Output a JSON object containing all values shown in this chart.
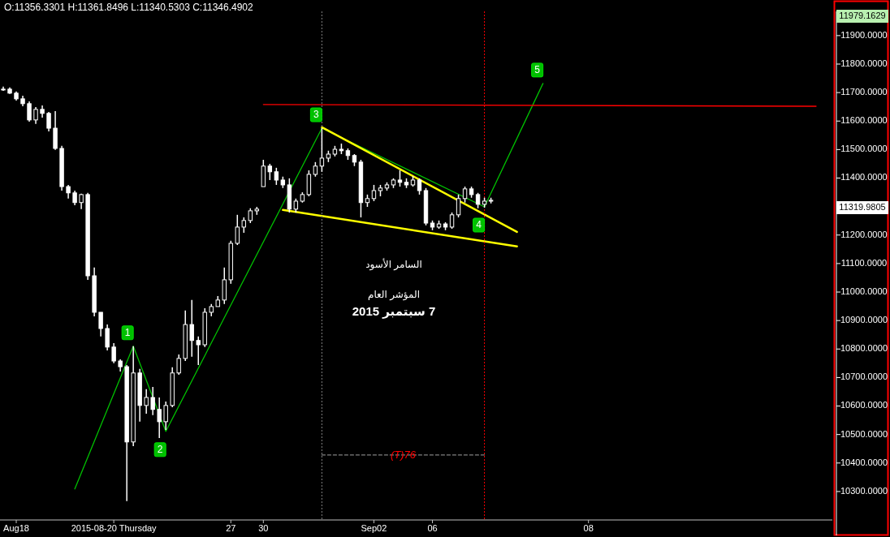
{
  "chart_data": {
    "type": "candlestick",
    "color": "#ffffff",
    "categories": [
      null,
      null,
      "Aug18",
      null,
      null,
      null,
      null,
      null,
      null,
      null,
      null,
      null,
      null,
      null,
      null,
      null,
      null,
      "2015-08-20 Thursday",
      null,
      null,
      null,
      null,
      null,
      null,
      null,
      null,
      null,
      null,
      null,
      null,
      null,
      null,
      null,
      null,
      null,
      "27",
      null,
      null,
      null,
      null,
      "30",
      null,
      null,
      null,
      null,
      null,
      null,
      null,
      null,
      null,
      null,
      null,
      null,
      null,
      null,
      null,
      null,
      "Sep02",
      null,
      null,
      null,
      null,
      null,
      null,
      null,
      null,
      "06",
      null,
      null,
      null,
      null,
      null,
      null,
      null,
      null,
      null,
      null,
      null,
      null,
      null,
      null,
      null,
      null,
      null,
      null,
      null,
      null,
      null,
      null,
      null,
      "08",
      null,
      null,
      null,
      null,
      null,
      null,
      null,
      null,
      null,
      null,
      null,
      null,
      null,
      null,
      null,
      null,
      null,
      null,
      null,
      null,
      null,
      null,
      null,
      null,
      null,
      null,
      null,
      null,
      null,
      null,
      null,
      null,
      null,
      null,
      null,
      null,
      null
    ],
    "ohlc": [
      [
        11712,
        11721,
        11706,
        11712
      ],
      [
        11712,
        11718,
        11695,
        11698
      ],
      [
        11698,
        11704,
        11672,
        11678
      ],
      [
        11678,
        11689,
        11652,
        11661
      ],
      [
        11661,
        11669,
        11598,
        11604
      ],
      [
        11604,
        11649,
        11590,
        11641
      ],
      [
        11641,
        11655,
        11612,
        11627
      ],
      [
        11627,
        11632,
        11564,
        11575
      ],
      [
        11575,
        11635,
        11499,
        11504
      ],
      [
        11504,
        11513,
        11356,
        11370
      ],
      [
        11370,
        11376,
        11328,
        11348
      ],
      [
        11348,
        11356,
        11305,
        11314
      ],
      [
        11314,
        11345,
        11291,
        11342
      ],
      [
        11342,
        11348,
        11043,
        11057
      ],
      [
        11057,
        11086,
        10915,
        10929
      ],
      [
        10929,
        10929,
        10844,
        10872
      ],
      [
        10872,
        10886,
        10795,
        10807
      ],
      [
        10807,
        10821,
        10750,
        10758
      ],
      [
        10758,
        10764,
        10721,
        10738
      ],
      [
        10738,
        10744,
        10266,
        10474
      ],
      [
        10474,
        10810,
        10459,
        10716
      ],
      [
        10716,
        10730,
        10545,
        10602
      ],
      [
        10602,
        10659,
        10573,
        10630
      ],
      [
        10630,
        10667,
        10568,
        10588
      ],
      [
        10588,
        10630,
        10488,
        10545
      ],
      [
        10545,
        10616,
        10516,
        10602
      ],
      [
        10602,
        10736,
        10596,
        10716
      ],
      [
        10716,
        10781,
        10710,
        10767
      ],
      [
        10767,
        10935,
        10758,
        10886
      ],
      [
        10886,
        10972,
        10773,
        10830
      ],
      [
        10830,
        10844,
        10744,
        10815
      ],
      [
        10815,
        10943,
        10807,
        10929
      ],
      [
        10929,
        10958,
        10915,
        10949
      ],
      [
        10949,
        10986,
        10949,
        10972
      ],
      [
        10972,
        11086,
        10958,
        11043
      ],
      [
        11043,
        11180,
        11029,
        11171
      ],
      [
        11171,
        11271,
        11165,
        11228
      ],
      [
        11228,
        11262,
        11208,
        11251
      ],
      [
        11251,
        11294,
        11242,
        11285
      ],
      [
        11285,
        11299,
        11271,
        11291
      ],
      [
        11370,
        11464,
        11370,
        11442
      ],
      [
        11442,
        11450,
        11393,
        11422
      ],
      [
        11422,
        11436,
        11376,
        11393
      ],
      [
        11393,
        11405,
        11365,
        11376
      ],
      [
        11376,
        11399,
        11279,
        11291
      ],
      [
        11291,
        11328,
        11279,
        11319
      ],
      [
        11319,
        11350,
        11314,
        11342
      ],
      [
        11342,
        11427,
        11336,
        11413
      ],
      [
        11413,
        11456,
        11405,
        11442
      ],
      [
        11442,
        11575,
        11422,
        11470
      ],
      [
        11470,
        11496,
        11456,
        11484
      ],
      [
        11484,
        11513,
        11476,
        11501
      ],
      [
        11501,
        11521,
        11484,
        11496
      ],
      [
        11496,
        11504,
        11464,
        11479
      ],
      [
        11479,
        11484,
        11442,
        11456
      ],
      [
        11456,
        11464,
        11262,
        11314
      ],
      [
        11314,
        11342,
        11299,
        11328
      ],
      [
        11328,
        11376,
        11319,
        11356
      ],
      [
        11356,
        11376,
        11336,
        11365
      ],
      [
        11365,
        11385,
        11356,
        11376
      ],
      [
        11376,
        11399,
        11365,
        11393
      ],
      [
        11393,
        11427,
        11370,
        11385
      ],
      [
        11385,
        11399,
        11365,
        11376
      ],
      [
        11376,
        11407,
        11370,
        11393
      ],
      [
        11393,
        11399,
        11342,
        11356
      ],
      [
        11356,
        11365,
        11234,
        11242
      ],
      [
        11242,
        11251,
        11217,
        11228
      ],
      [
        11228,
        11251,
        11222,
        11239
      ],
      [
        11239,
        11245,
        11217,
        11228
      ],
      [
        11228,
        11279,
        11222,
        11271
      ],
      [
        11271,
        11342,
        11262,
        11328
      ],
      [
        11328,
        11370,
        11314,
        11362
      ],
      [
        11362,
        11370,
        11331,
        11342
      ],
      [
        11342,
        11348,
        11294,
        11308
      ],
      [
        11308,
        11331,
        11296,
        11319
      ],
      [
        11319,
        11331,
        11311,
        11322
      ],
      null,
      null,
      null,
      null,
      null,
      null,
      null,
      null,
      null,
      null,
      null,
      null,
      null,
      null,
      null,
      null,
      null,
      null,
      null,
      null,
      null,
      null,
      null,
      null,
      null,
      null,
      null,
      null,
      null,
      null,
      null,
      null,
      null,
      null,
      null,
      null,
      null,
      null,
      null,
      null,
      null,
      null,
      null,
      null,
      null,
      null,
      null,
      null,
      null,
      null,
      null,
      null
    ],
    "ylim": [
      10203,
      11985
    ],
    "yticks": [
      {
        "value": 10300,
        "label": "10300.0000"
      },
      {
        "value": 10400,
        "label": "10400.0000"
      },
      {
        "value": 10500,
        "label": "10500.0000"
      },
      {
        "value": 10600,
        "label": "10600.0000"
      },
      {
        "value": 10700,
        "label": "10700.0000"
      },
      {
        "value": 10800,
        "label": "10800.0000"
      },
      {
        "value": 10900,
        "label": "10900.0000"
      },
      {
        "value": 11000,
        "label": "11000.0000"
      },
      {
        "value": 11100,
        "label": "11100.0000"
      },
      {
        "value": 11200,
        "label": "11200.0000"
      },
      {
        "value": 11300,
        "label": null
      },
      {
        "value": 11400,
        "label": "11400.0000"
      },
      {
        "value": 11500,
        "label": "11500.0000"
      },
      {
        "value": 11600,
        "label": "11600.0000"
      },
      {
        "value": 11700,
        "label": "11700.0000"
      },
      {
        "value": 11800,
        "label": "11800.0000"
      },
      {
        "value": 11900,
        "label": "11900.0000"
      }
    ],
    "series": [
      {
        "type": "line",
        "color": "#00c000",
        "values": [
          null,
          null,
          null,
          null,
          null,
          null,
          null,
          null,
          null,
          null,
          null,
          10309,
          null,
          null,
          null,
          null,
          null,
          null,
          null,
          null,
          10810,
          null,
          null,
          null,
          null,
          10511,
          null,
          null,
          null,
          null,
          null,
          null,
          null,
          null,
          null,
          null,
          null,
          null,
          null,
          null,
          null,
          null,
          null,
          null,
          null,
          null,
          null,
          null,
          null,
          11575,
          null,
          null,
          null,
          null,
          null,
          null,
          null,
          null,
          null,
          null,
          null,
          null,
          null,
          null,
          null,
          null,
          null,
          null,
          null,
          null,
          null,
          null,
          null,
          null,
          11299,
          null,
          null,
          null,
          null,
          null,
          null,
          null,
          null,
          11732,
          null,
          null,
          null,
          null,
          null,
          null,
          null,
          null,
          null,
          null,
          null,
          null,
          null,
          null,
          null,
          null,
          null,
          null,
          null,
          null,
          null,
          null,
          null,
          null,
          null,
          null,
          null,
          null,
          null,
          null,
          null,
          null,
          null,
          null,
          null,
          null,
          null,
          null,
          null,
          null,
          null,
          null,
          null,
          null
        ]
      },
      {
        "type": "line",
        "color": "#ffff00",
        "values": [
          null,
          null,
          null,
          null,
          null,
          null,
          null,
          null,
          null,
          null,
          null,
          null,
          null,
          null,
          null,
          null,
          null,
          null,
          null,
          null,
          null,
          null,
          null,
          null,
          null,
          null,
          null,
          null,
          null,
          null,
          null,
          null,
          null,
          null,
          null,
          null,
          null,
          null,
          null,
          null,
          null,
          null,
          null,
          null,
          null,
          null,
          null,
          null,
          null,
          11578,
          null,
          null,
          null,
          null,
          null,
          null,
          null,
          null,
          null,
          null,
          null,
          null,
          null,
          null,
          null,
          null,
          null,
          null,
          null,
          null,
          null,
          null,
          null,
          null,
          null,
          null,
          null,
          null,
          null,
          11211,
          null,
          null,
          null,
          null,
          null,
          null,
          null,
          null,
          null,
          null,
          null,
          null,
          null,
          null,
          null,
          null,
          null,
          null,
          null,
          null,
          null,
          null,
          null,
          null,
          null,
          null,
          null,
          null,
          null,
          null,
          null,
          null,
          null,
          null,
          null,
          null,
          null,
          null,
          null,
          null,
          null,
          null,
          null,
          null,
          null,
          null,
          null,
          null
        ]
      },
      {
        "type": "line",
        "color": "#ffff00",
        "values": [
          null,
          null,
          null,
          null,
          null,
          null,
          null,
          null,
          null,
          null,
          null,
          null,
          null,
          null,
          null,
          null,
          null,
          null,
          null,
          null,
          null,
          null,
          null,
          null,
          null,
          null,
          null,
          null,
          null,
          null,
          null,
          null,
          null,
          null,
          null,
          null,
          null,
          null,
          null,
          null,
          null,
          null,
          null,
          11288,
          null,
          null,
          null,
          null,
          null,
          null,
          null,
          null,
          null,
          null,
          null,
          null,
          null,
          null,
          null,
          null,
          null,
          null,
          null,
          null,
          null,
          null,
          null,
          null,
          null,
          null,
          null,
          null,
          null,
          null,
          null,
          null,
          null,
          null,
          null,
          11160,
          null,
          null,
          null,
          null,
          null,
          null,
          null,
          null,
          null,
          null,
          null,
          null,
          null,
          null,
          null,
          null,
          null,
          null,
          null,
          null,
          null,
          null,
          null,
          null,
          null,
          null,
          null,
          null,
          null,
          null,
          null,
          null,
          null,
          null,
          null,
          null,
          null,
          null,
          null,
          null,
          null,
          null,
          null,
          null,
          null,
          null,
          null,
          null
        ]
      },
      {
        "type": "line",
        "color": "#ff0000",
        "values": [
          null,
          null,
          null,
          null,
          null,
          null,
          null,
          null,
          null,
          null,
          null,
          null,
          null,
          null,
          null,
          null,
          null,
          null,
          null,
          null,
          null,
          null,
          null,
          null,
          null,
          null,
          null,
          null,
          null,
          null,
          null,
          null,
          null,
          null,
          null,
          null,
          null,
          null,
          null,
          null,
          11658,
          null,
          null,
          null,
          null,
          null,
          null,
          null,
          null,
          null,
          null,
          null,
          null,
          null,
          null,
          null,
          null,
          null,
          null,
          null,
          null,
          null,
          null,
          null,
          null,
          null,
          null,
          null,
          null,
          null,
          null,
          null,
          null,
          null,
          null,
          null,
          null,
          null,
          null,
          null,
          null,
          null,
          null,
          null,
          null,
          null,
          null,
          null,
          null,
          null,
          null,
          null,
          null,
          null,
          null,
          null,
          null,
          null,
          null,
          null,
          null,
          null,
          null,
          null,
          null,
          null,
          null,
          null,
          null,
          null,
          null,
          null,
          null,
          null,
          null,
          null,
          null,
          null,
          null,
          null,
          null,
          null,
          null,
          null,
          null,
          11652,
          null,
          null
        ]
      },
      {
        "type": "line",
        "color": "#808080",
        "line_style": "dashed",
        "values": [
          null,
          null,
          null,
          null,
          null,
          null,
          null,
          null,
          null,
          null,
          null,
          null,
          null,
          null,
          null,
          null,
          null,
          null,
          null,
          null,
          null,
          null,
          null,
          null,
          null,
          null,
          null,
          null,
          null,
          null,
          null,
          null,
          null,
          null,
          null,
          null,
          null,
          null,
          null,
          null,
          null,
          null,
          null,
          null,
          null,
          null,
          null,
          null,
          null,
          10428,
          null,
          null,
          null,
          null,
          null,
          null,
          null,
          null,
          null,
          null,
          null,
          null,
          null,
          null,
          null,
          null,
          null,
          null,
          null,
          null,
          null,
          null,
          null,
          null,
          10428,
          null,
          null,
          null,
          null,
          null,
          null,
          null,
          null,
          null,
          null,
          null,
          null,
          null,
          null,
          null,
          null,
          null,
          null,
          null,
          null,
          null,
          null,
          null,
          null,
          null,
          null,
          null,
          null,
          null,
          null,
          null,
          null,
          null,
          null,
          null,
          null,
          null,
          null,
          null,
          null,
          null,
          null,
          null,
          null,
          null,
          null,
          null,
          null,
          null,
          null,
          null,
          null,
          null
        ]
      }
    ],
    "annotations": [
      "O:11356.3301  H:11361.8496  L:11340.5303  C:11346.4902",
      "السامر الأسود",
      "المؤشر العام",
      "7 سبتمبر 2015",
      "(T)76",
      "11979.1629",
      "11319.9805",
      "1",
      "2",
      "3",
      "4",
      "5"
    ]
  }
}
